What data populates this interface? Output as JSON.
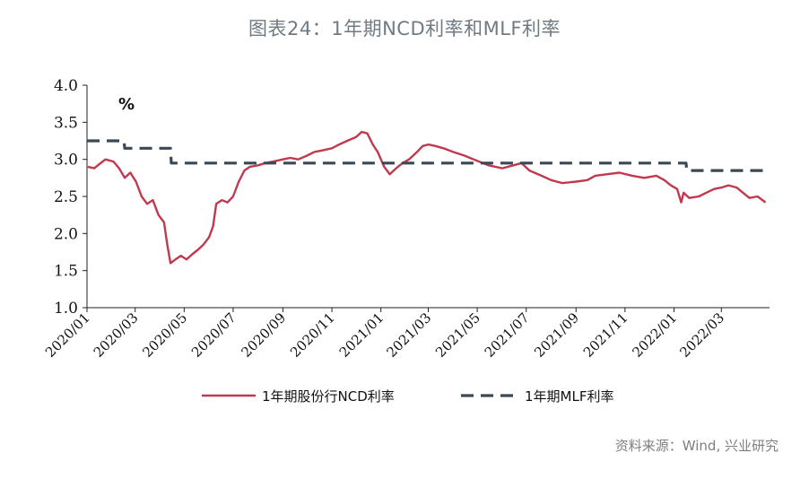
{
  "title": "图表24：1年期NCD利率和MLF利率",
  "source": "资料来源：Wind, 兴业研究",
  "colors": {
    "ncd": "#c0394e",
    "mlf": "#3b4954",
    "axis": "#222222",
    "title": "#6f7a83"
  },
  "chart_data": {
    "type": "line",
    "ylabel": "%",
    "ylim": [
      1.0,
      4.0
    ],
    "yticks": [
      "1.0",
      "1.5",
      "2.0",
      "2.5",
      "3.0",
      "3.5",
      "4.0"
    ],
    "xlim": [
      "2020-01-01",
      "2022-04-30"
    ],
    "xticks": [
      {
        "label": "2020/01",
        "date": "2020-01-01"
      },
      {
        "label": "2020/03",
        "date": "2020-03-01"
      },
      {
        "label": "2020/05",
        "date": "2020-05-01"
      },
      {
        "label": "2020/07",
        "date": "2020-07-01"
      },
      {
        "label": "2020/09",
        "date": "2020-09-01"
      },
      {
        "label": "2020/11",
        "date": "2020-11-01"
      },
      {
        "label": "2021/01",
        "date": "2021-01-01"
      },
      {
        "label": "2021/03",
        "date": "2021-03-01"
      },
      {
        "label": "2021/05",
        "date": "2021-05-01"
      },
      {
        "label": "2021/07",
        "date": "2021-07-01"
      },
      {
        "label": "2021/09",
        "date": "2021-09-01"
      },
      {
        "label": "2021/11",
        "date": "2021-11-01"
      },
      {
        "label": "2022/01",
        "date": "2022-01-01"
      },
      {
        "label": "2022/03",
        "date": "2022-03-01"
      }
    ],
    "legend_position": "bottom",
    "series": [
      {
        "name": "1年期股份行NCD利率",
        "style": "solid",
        "color": "#c0394e",
        "points": [
          [
            "2020-01-02",
            2.9
          ],
          [
            "2020-01-10",
            2.88
          ],
          [
            "2020-01-18",
            2.95
          ],
          [
            "2020-01-24",
            3.0
          ],
          [
            "2020-02-03",
            2.97
          ],
          [
            "2020-02-10",
            2.88
          ],
          [
            "2020-02-17",
            2.75
          ],
          [
            "2020-02-24",
            2.82
          ],
          [
            "2020-03-02",
            2.7
          ],
          [
            "2020-03-09",
            2.5
          ],
          [
            "2020-03-16",
            2.4
          ],
          [
            "2020-03-23",
            2.45
          ],
          [
            "2020-03-30",
            2.25
          ],
          [
            "2020-04-06",
            2.15
          ],
          [
            "2020-04-10",
            1.85
          ],
          [
            "2020-04-14",
            1.6
          ],
          [
            "2020-04-20",
            1.65
          ],
          [
            "2020-04-27",
            1.7
          ],
          [
            "2020-05-04",
            1.65
          ],
          [
            "2020-05-11",
            1.72
          ],
          [
            "2020-05-18",
            1.78
          ],
          [
            "2020-05-25",
            1.85
          ],
          [
            "2020-06-01",
            1.95
          ],
          [
            "2020-06-06",
            2.1
          ],
          [
            "2020-06-10",
            2.4
          ],
          [
            "2020-06-17",
            2.45
          ],
          [
            "2020-06-24",
            2.42
          ],
          [
            "2020-07-01",
            2.5
          ],
          [
            "2020-07-08",
            2.7
          ],
          [
            "2020-07-15",
            2.85
          ],
          [
            "2020-07-22",
            2.9
          ],
          [
            "2020-08-01",
            2.92
          ],
          [
            "2020-08-10",
            2.95
          ],
          [
            "2020-08-20",
            2.97
          ],
          [
            "2020-09-01",
            3.0
          ],
          [
            "2020-09-10",
            3.02
          ],
          [
            "2020-09-20",
            3.0
          ],
          [
            "2020-10-01",
            3.05
          ],
          [
            "2020-10-10",
            3.1
          ],
          [
            "2020-10-20",
            3.12
          ],
          [
            "2020-11-01",
            3.15
          ],
          [
            "2020-11-10",
            3.2
          ],
          [
            "2020-11-20",
            3.25
          ],
          [
            "2020-12-01",
            3.3
          ],
          [
            "2020-12-08",
            3.37
          ],
          [
            "2020-12-15",
            3.35
          ],
          [
            "2020-12-22",
            3.2
          ],
          [
            "2020-12-28",
            3.1
          ],
          [
            "2021-01-05",
            2.9
          ],
          [
            "2021-01-12",
            2.8
          ],
          [
            "2021-01-20",
            2.88
          ],
          [
            "2021-01-28",
            2.95
          ],
          [
            "2021-02-05",
            3.0
          ],
          [
            "2021-02-15",
            3.1
          ],
          [
            "2021-02-22",
            3.18
          ],
          [
            "2021-03-01",
            3.2
          ],
          [
            "2021-03-10",
            3.18
          ],
          [
            "2021-03-20",
            3.15
          ],
          [
            "2021-04-01",
            3.1
          ],
          [
            "2021-04-15",
            3.05
          ],
          [
            "2021-05-01",
            2.98
          ],
          [
            "2021-05-15",
            2.92
          ],
          [
            "2021-06-01",
            2.88
          ],
          [
            "2021-06-15",
            2.92
          ],
          [
            "2021-06-25",
            2.95
          ],
          [
            "2021-07-05",
            2.85
          ],
          [
            "2021-07-20",
            2.78
          ],
          [
            "2021-08-01",
            2.72
          ],
          [
            "2021-08-15",
            2.68
          ],
          [
            "2021-09-01",
            2.7
          ],
          [
            "2021-09-15",
            2.72
          ],
          [
            "2021-09-25",
            2.78
          ],
          [
            "2021-10-10",
            2.8
          ],
          [
            "2021-10-25",
            2.82
          ],
          [
            "2021-11-10",
            2.78
          ],
          [
            "2021-11-25",
            2.75
          ],
          [
            "2021-12-10",
            2.78
          ],
          [
            "2021-12-20",
            2.72
          ],
          [
            "2021-12-28",
            2.65
          ],
          [
            "2022-01-05",
            2.6
          ],
          [
            "2022-01-10",
            2.42
          ],
          [
            "2022-01-13",
            2.55
          ],
          [
            "2022-01-20",
            2.48
          ],
          [
            "2022-02-01",
            2.5
          ],
          [
            "2022-02-10",
            2.55
          ],
          [
            "2022-02-20",
            2.6
          ],
          [
            "2022-03-01",
            2.62
          ],
          [
            "2022-03-10",
            2.65
          ],
          [
            "2022-03-20",
            2.62
          ],
          [
            "2022-03-28",
            2.55
          ],
          [
            "2022-04-05",
            2.48
          ],
          [
            "2022-04-15",
            2.5
          ],
          [
            "2022-04-25",
            2.42
          ]
        ]
      },
      {
        "name": "1年期MLF利率",
        "style": "dashed",
        "color": "#3b4954",
        "points": [
          [
            "2020-01-01",
            3.25
          ],
          [
            "2020-02-16",
            3.25
          ],
          [
            "2020-02-17",
            3.15
          ],
          [
            "2020-04-14",
            3.15
          ],
          [
            "2020-04-15",
            2.95
          ],
          [
            "2022-01-16",
            2.95
          ],
          [
            "2022-01-17",
            2.85
          ],
          [
            "2022-04-30",
            2.85
          ]
        ]
      }
    ]
  }
}
